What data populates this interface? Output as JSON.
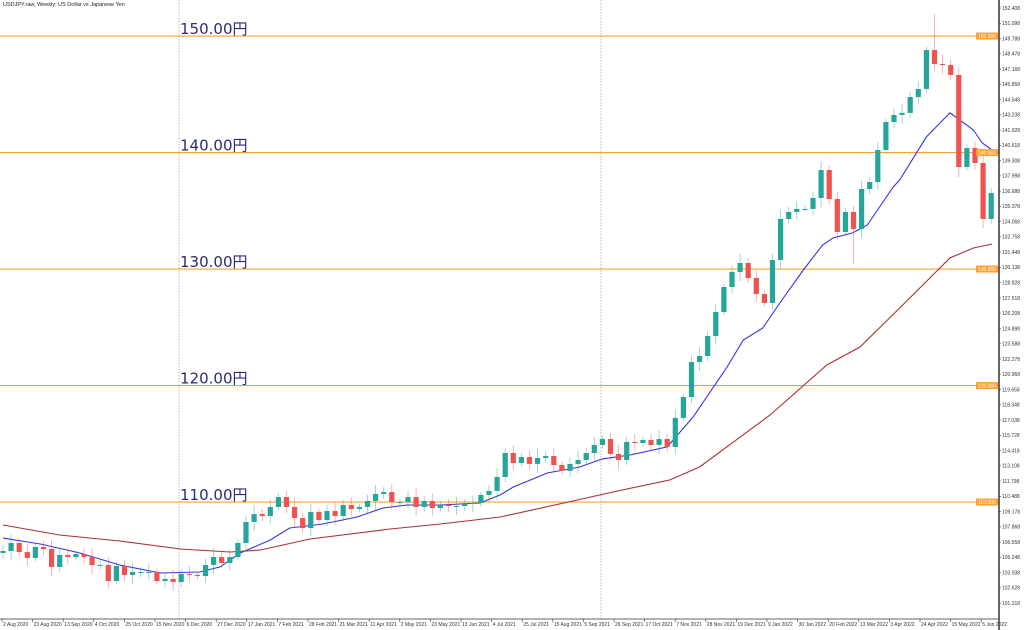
{
  "header": {
    "title": "USDJPY.raw, Weekly:  US Dollar vs Japanese Yen"
  },
  "colors": {
    "bull": "#26a69a",
    "bear": "#ef5350",
    "level": "#ffa033",
    "ma_fast": "#3535e0",
    "ma_slow": "#a83232"
  },
  "chart_data": {
    "type": "candlestick",
    "title": "USDJPY.raw, Weekly: US Dollar vs Japanese Yen",
    "ylim": [
      100.6,
      153.1
    ],
    "y_ticks": [
      "152.408",
      "151.098",
      "149.788",
      "148.478",
      "147.168",
      "145.858",
      "144.548",
      "143.238",
      "141.928",
      "140.618",
      "139.308",
      "137.998",
      "136.688",
      "135.378",
      "134.068",
      "132.758",
      "131.448",
      "130.138",
      "128.828",
      "127.518",
      "126.208",
      "124.898",
      "123.588",
      "122.278",
      "120.968",
      "119.658",
      "118.348",
      "117.038",
      "115.728",
      "114.418",
      "113.108",
      "111.798",
      "110.488",
      "109.178",
      "107.868",
      "106.558",
      "105.248",
      "103.938",
      "102.628",
      "101.318"
    ],
    "x_ticks": [
      "2 Aug 2020",
      "23 Aug 2020",
      "13 Sep 2020",
      "4 Oct 2020",
      "25 Oct 2020",
      "15 Nov 2020",
      "6 Dec 2020",
      "27 Dec 2020",
      "17 Jan 2021",
      "7 Feb 2021",
      "28 Feb 2021",
      "21 Mar 2021",
      "11 Apr 2021",
      "2 May 2021",
      "23 May 2021",
      "13 Jun 2021",
      "4 Jul 2021",
      "25 Jul 2021",
      "15 Aug 2021",
      "5 Sep 2021",
      "26 Sep 2021",
      "17 Oct 2021",
      "7 Nov 2021",
      "28 Nov 2021",
      "19 Dec 2021",
      "9 Jan 2022",
      "30 Jan 2022",
      "20 Feb 2022",
      "13 Mar 2022",
      "3 Apr 2022",
      "24 Apr 2022",
      "15 May 2022",
      "5 Jun 2022"
    ],
    "first_open": 105.63,
    "closes": [
      105.8,
      106.49,
      105.71,
      105.2,
      106.14,
      105.97,
      104.43,
      105.46,
      105.28,
      105.54,
      105.28,
      104.6,
      104.6,
      103.22,
      104.51,
      103.74,
      104.0,
      104.0,
      104.0,
      103.22,
      103.4,
      103.14,
      103.82,
      103.74,
      103.65,
      104.6,
      105.28,
      104.77,
      105.28,
      106.49,
      108.29,
      108.97,
      108.8,
      109.58,
      110.43,
      109.58,
      108.63,
      107.77,
      109.15,
      108.46,
      109.23,
      108.8,
      109.75,
      109.4,
      109.58,
      110.09,
      110.69,
      110.86,
      110.0,
      110.0,
      110.43,
      109.58,
      110.09,
      109.49,
      109.75,
      109.66,
      109.66,
      109.83,
      109.92,
      110.61,
      110.95,
      112.15,
      114.21,
      113.35,
      113.87,
      113.27,
      113.78,
      113.95,
      113.18,
      112.67,
      113.27,
      113.61,
      114.21,
      114.9,
      115.41,
      114.13,
      113.61,
      115.16,
      115.07,
      115.33,
      114.9,
      115.41,
      114.73,
      117.22,
      119.02,
      122.02,
      122.54,
      124.25,
      126.31,
      128.46,
      129.75,
      130.52,
      129.23,
      127.86,
      127.09,
      130.78,
      134.3,
      134.9,
      135.16,
      135.16,
      136.1,
      138.5,
      136.01,
      133.18,
      134.9,
      133.44,
      136.87,
      137.47,
      140.22,
      142.62,
      143.23,
      143.4,
      144.77,
      145.46,
      148.8,
      147.6,
      147.52,
      146.66,
      138.76,
      140.39,
      139.1,
      134.3,
      136.53
    ],
    "wick_extremes": {
      "116": {
        "high": 151.9
      },
      "106": {
        "low": 130.4
      },
      "119": {
        "low": 137.9
      }
    },
    "moving_averages": [
      {
        "name": "fast MA",
        "points": [
          [
            1,
            106.91
          ],
          [
            5.6,
            106.4
          ],
          [
            10.5,
            105.63
          ],
          [
            15.4,
            104.6
          ],
          [
            20.4,
            103.91
          ],
          [
            25.3,
            104.0
          ],
          [
            27.8,
            104.43
          ],
          [
            30.3,
            105.63
          ],
          [
            34,
            106.74
          ],
          [
            36.4,
            107.77
          ],
          [
            40.5,
            108.12
          ],
          [
            44.7,
            108.72
          ],
          [
            47.9,
            109.49
          ],
          [
            50.9,
            109.75
          ],
          [
            55,
            109.75
          ],
          [
            59.9,
            109.92
          ],
          [
            62.4,
            110.61
          ],
          [
            64,
            111.29
          ],
          [
            68.2,
            112.49
          ],
          [
            72.2,
            113.01
          ],
          [
            75,
            113.7
          ],
          [
            78.4,
            114.04
          ],
          [
            83,
            114.73
          ],
          [
            86.2,
            117.3
          ],
          [
            90.4,
            121.59
          ],
          [
            92.4,
            123.91
          ],
          [
            94.8,
            124.94
          ],
          [
            96.9,
            127.09
          ],
          [
            99.8,
            129.92
          ],
          [
            102.2,
            132.07
          ],
          [
            103.5,
            132.67
          ],
          [
            105.9,
            133.1
          ],
          [
            107.7,
            133.78
          ],
          [
            110.9,
            137.04
          ],
          [
            111.7,
            137.65
          ],
          [
            115,
            141.34
          ],
          [
            117.9,
            143.4
          ],
          [
            118.8,
            142.97
          ],
          [
            120.8,
            141.94
          ],
          [
            121.9,
            140.82
          ],
          [
            123.1,
            140.22
          ]
        ]
      },
      {
        "name": "slow MA",
        "points": [
          [
            1,
            108.03
          ],
          [
            8,
            107.17
          ],
          [
            15.4,
            106.66
          ],
          [
            22.9,
            105.97
          ],
          [
            29,
            105.71
          ],
          [
            32.7,
            105.88
          ],
          [
            38.9,
            106.83
          ],
          [
            48.8,
            107.69
          ],
          [
            55,
            108.12
          ],
          [
            62.4,
            108.72
          ],
          [
            71.9,
            110.18
          ],
          [
            76.3,
            110.86
          ],
          [
            83.3,
            111.89
          ],
          [
            87,
            113.01
          ],
          [
            95.7,
            117.47
          ],
          [
            102.7,
            121.76
          ],
          [
            106.8,
            123.31
          ],
          [
            111.7,
            126.66
          ],
          [
            117.9,
            130.95
          ],
          [
            120.8,
            131.81
          ],
          [
            123.1,
            132.15
          ]
        ]
      }
    ],
    "levels": [
      {
        "price": 150,
        "label": "150.00円",
        "tag": "150.000"
      },
      {
        "price": 140,
        "label": "140.00円",
        "tag": "140.000"
      },
      {
        "price": 130,
        "label": "130.00円",
        "tag": "130.000"
      },
      {
        "price": 120,
        "label": "120.00円",
        "tag": "120.000"
      },
      {
        "price": 110,
        "label": "110.00円",
        "tag": "110.000"
      }
    ],
    "grid": false
  }
}
